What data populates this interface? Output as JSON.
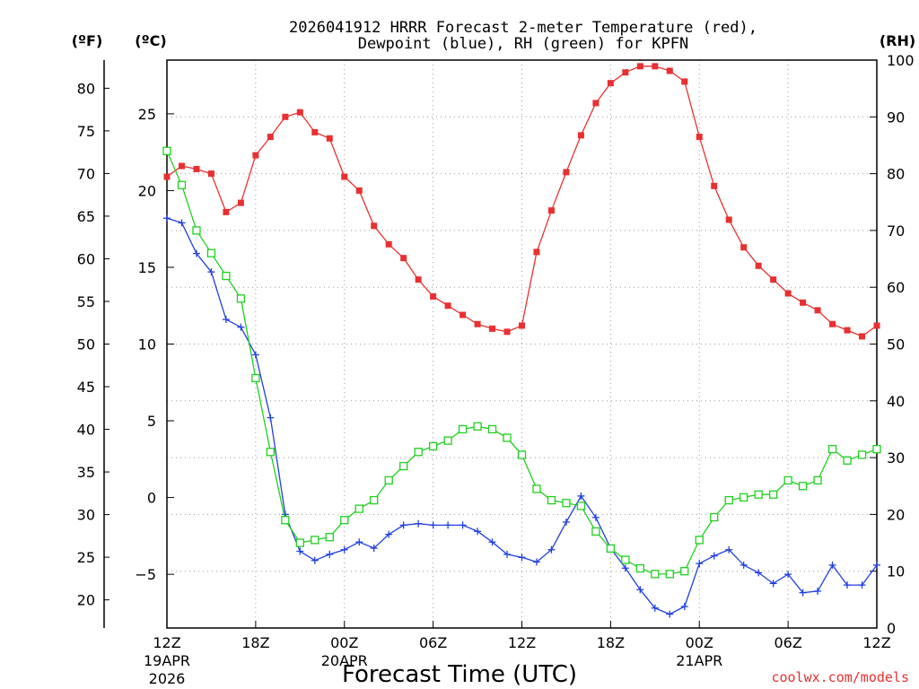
{
  "chart_data": {
    "type": "line",
    "title_line1": "2026041912 HRRR Forecast 2-meter Temperature (red),",
    "title_line2": "Dewpoint (blue), RH (green) for KPFN",
    "xlabel": "Forecast Time (UTC)",
    "unit_f": "(ºF)",
    "unit_c": "(ºC)",
    "unit_rh": "(RH)",
    "watermark": "coolwx.com/models",
    "x_range_hours": [
      0,
      48
    ],
    "y_left_c_range": [
      -8.5,
      28.5
    ],
    "y_right_rh_range": [
      0,
      100
    ],
    "x_ticks": [
      {
        "hour": 0,
        "label": "12Z",
        "sub1": "19APR",
        "sub2": "2026"
      },
      {
        "hour": 6,
        "label": "18Z",
        "sub1": "",
        "sub2": ""
      },
      {
        "hour": 12,
        "label": "00Z",
        "sub1": "20APR",
        "sub2": ""
      },
      {
        "hour": 18,
        "label": "06Z",
        "sub1": "",
        "sub2": ""
      },
      {
        "hour": 24,
        "label": "12Z",
        "sub1": "",
        "sub2": ""
      },
      {
        "hour": 30,
        "label": "18Z",
        "sub1": "",
        "sub2": ""
      },
      {
        "hour": 36,
        "label": "00Z",
        "sub1": "21APR",
        "sub2": ""
      },
      {
        "hour": 42,
        "label": "06Z",
        "sub1": "",
        "sub2": ""
      },
      {
        "hour": 48,
        "label": "12Z",
        "sub1": "",
        "sub2": ""
      }
    ],
    "y_ticks_c": [
      25,
      20,
      15,
      10,
      5,
      0,
      -5
    ],
    "y_ticks_c_labels": [
      "25",
      "20",
      "15",
      "10",
      "5",
      "0",
      "−5"
    ],
    "y_ticks_f": [
      80,
      75,
      70,
      65,
      60,
      55,
      50,
      45,
      40,
      35,
      30,
      25,
      20
    ],
    "y_ticks_rh": [
      100,
      90,
      80,
      70,
      60,
      50,
      40,
      30,
      20,
      10,
      0
    ],
    "series": [
      {
        "name": "Temperature",
        "units": "C",
        "color": "#e83030",
        "marker": "filled-square",
        "hours": [
          0,
          1,
          2,
          3,
          4,
          5,
          6,
          7,
          8,
          9,
          10,
          11,
          12,
          13,
          14,
          15,
          16,
          17,
          18,
          19,
          20,
          21,
          22,
          23,
          24,
          25,
          26,
          27,
          28,
          29,
          30,
          31,
          32,
          33,
          34,
          35,
          36,
          37,
          38,
          39,
          40,
          41,
          42,
          43,
          44,
          45,
          46,
          47,
          48
        ],
        "values": [
          20.9,
          21.6,
          21.4,
          21.1,
          18.6,
          19.2,
          22.3,
          23.5,
          24.8,
          25.1,
          23.8,
          23.4,
          20.9,
          20.0,
          17.7,
          16.5,
          15.6,
          14.2,
          13.1,
          12.5,
          11.9,
          11.3,
          11.0,
          10.8,
          11.2,
          16.0,
          18.7,
          21.2,
          23.6,
          25.7,
          27.0,
          27.7,
          28.1,
          28.1,
          27.8,
          27.1,
          23.5,
          20.3,
          18.1,
          16.3,
          15.1,
          14.2,
          13.3,
          12.7,
          12.2,
          11.3,
          10.9,
          10.5,
          11.2
        ]
      },
      {
        "name": "Dewpoint",
        "units": "C",
        "color": "#2040e0",
        "marker": "plus",
        "hours": [
          0,
          1,
          2,
          3,
          4,
          5,
          6,
          7,
          8,
          9,
          10,
          11,
          12,
          13,
          14,
          15,
          16,
          17,
          18,
          19,
          20,
          21,
          22,
          23,
          24,
          25,
          26,
          27,
          28,
          29,
          30,
          31,
          32,
          33,
          34,
          35,
          36,
          37,
          38,
          39,
          40,
          41,
          42,
          43,
          44,
          45,
          46,
          47,
          48
        ],
        "values": [
          18.2,
          17.9,
          15.9,
          14.7,
          11.6,
          11.1,
          9.3,
          5.2,
          -1.1,
          -3.5,
          -4.1,
          -3.7,
          -3.4,
          -2.9,
          -3.3,
          -2.4,
          -1.8,
          -1.7,
          -1.8,
          -1.8,
          -1.8,
          -2.2,
          -2.9,
          -3.7,
          -3.9,
          -4.2,
          -3.4,
          -1.6,
          0.1,
          -1.3,
          -3.3,
          -4.6,
          -6.0,
          -7.2,
          -7.6,
          -7.1,
          -4.3,
          -3.8,
          -3.4,
          -4.4,
          -4.9,
          -5.6,
          -5.0,
          -6.2,
          -6.1,
          -4.4,
          -5.7,
          -5.7,
          -4.4
        ]
      },
      {
        "name": "RH",
        "units": "%",
        "color": "#20d020",
        "marker": "open-square",
        "hours": [
          0,
          1,
          2,
          3,
          4,
          5,
          6,
          7,
          8,
          9,
          10,
          11,
          12,
          13,
          14,
          15,
          16,
          17,
          18,
          19,
          20,
          21,
          22,
          23,
          24,
          25,
          26,
          27,
          28,
          29,
          30,
          31,
          32,
          33,
          34,
          35,
          36,
          37,
          38,
          39,
          40,
          41,
          42,
          43,
          44,
          45,
          46,
          47,
          48
        ],
        "values": [
          84,
          78,
          70,
          66,
          62,
          58,
          44,
          31,
          19,
          15,
          15.5,
          16,
          19,
          21,
          22.5,
          26,
          28.5,
          31,
          32,
          33,
          35,
          35.5,
          35,
          33.5,
          30.5,
          24.5,
          22.5,
          22,
          21.5,
          17,
          14,
          12,
          10.5,
          9.5,
          9.5,
          10,
          15.5,
          19.5,
          22.5,
          23,
          23.5,
          23.5,
          26,
          25,
          26,
          31.5,
          29.5,
          30.5,
          31.5
        ]
      }
    ]
  }
}
